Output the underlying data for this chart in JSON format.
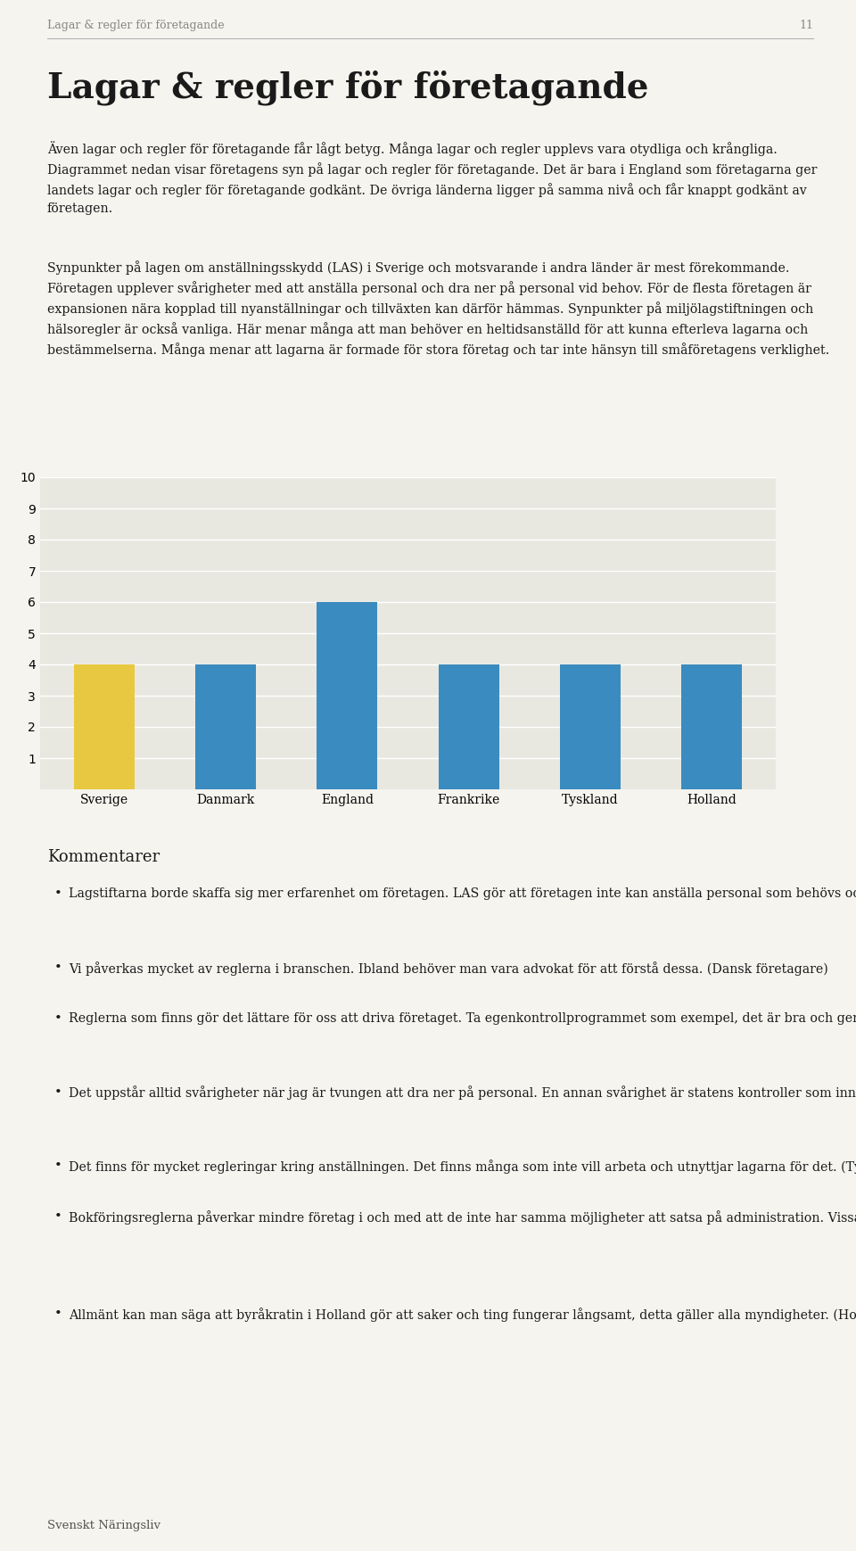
{
  "categories": [
    "Sverige",
    "Danmark",
    "England",
    "Frankrike",
    "Tyskland",
    "Holland"
  ],
  "values": [
    4,
    4,
    6,
    4,
    4,
    4
  ],
  "bar_colors": [
    "#e8c840",
    "#3a8bbf",
    "#3a8bbf",
    "#3a8bbf",
    "#3a8bbf",
    "#3a8bbf"
  ],
  "ylim": [
    0,
    10
  ],
  "yticks": [
    1,
    2,
    3,
    4,
    5,
    6,
    7,
    8,
    9,
    10
  ],
  "plot_bg_color": "#e8e8e0",
  "page_bg_color": "#f5f4ef",
  "bar_width": 0.5,
  "figsize": [
    9.6,
    17.39
  ],
  "header_text": "Lagar & regler för företagande",
  "page_number": "11",
  "title": "Lagar & regler för företagande",
  "body_para1": "Även lagar och regler för företagande får lågt betyg. Många lagar och regler upplevs vara otydliga och krångliga. Diagrammet nedan visar företagens syn på lagar och regler för företagande. Det är bara i England som företagarna ger landets lagar och regler för företagande godkänt. De övriga länderna ligger på samma nivå och får knappt godkänt av företagen.",
  "body_para2": "Synpunkter på lagen om anställningsskydd (LAS) i Sverige och motsvarande i andra länder är mest förekommande. Företagen upplever svårigheter med att anställa personal och dra ner på personal vid behov. För de flesta företagen är expansionen nära kopplad till nyanställningar och tillväxten kan därför hämmas. Synpunkter på miljölagstiftningen och hälsoregler är också vanliga. Här menar många att man behöver en heltidsanställd för att kunna efterleva lagarna och bestämmelserna. Många menar att lagarna är formade för stora företag och tar inte hänsyn till småföretagens verklighet.",
  "kommentarer_title": "Kommentarer",
  "bullets": [
    "Lagstiftarna borde skaffa sig mer erfarenhet om företagen. LAS gör att företagen inte kan anställa personal som behövs och de kan inte göra sig av med personal som de inte behöver. (Svensk företagare)",
    "Vi påverkas mycket av reglerna i branschen. Ibland behöver man vara advokat för att förstå dessa. (Dansk företagare)",
    "Reglerna som finns gör det lättare för oss att driva företaget. Ta egenkontrollprogrammet som exempel, det är bra och ger oss rutiner i hur vi ska göra för att maten och matberedningen ska skötas rätt. (Engelsk företagare)",
    "Det uppstår alltid svårigheter när jag är tvungen att dra ner på personal. En annan svårighet är statens kontroller som innebär en rätt jobbig procedur. (Fransk företagare)",
    "Det finns för mycket regleringar kring anställningen. Det finns många som inte vill arbeta och utnyttjar lagarna för det. (Tysk företagare)",
    "Bokföringsreglerna påverkar mindre företag i och med att de inte har samma möjligheter att satsa på administration. Vissa av dessa regler behövs inte för företag som är lite mindre. Det borde finnas undantag som gör det lättare för småföretagen. (Tysk företagare)",
    "Allmänt kan man säga att byråkratin i Holland gör att saker och ting fungerar långsamt, detta gäller alla myndigheter. (Holländsk företagare)"
  ],
  "footer": "Svenskt Näringsliv"
}
